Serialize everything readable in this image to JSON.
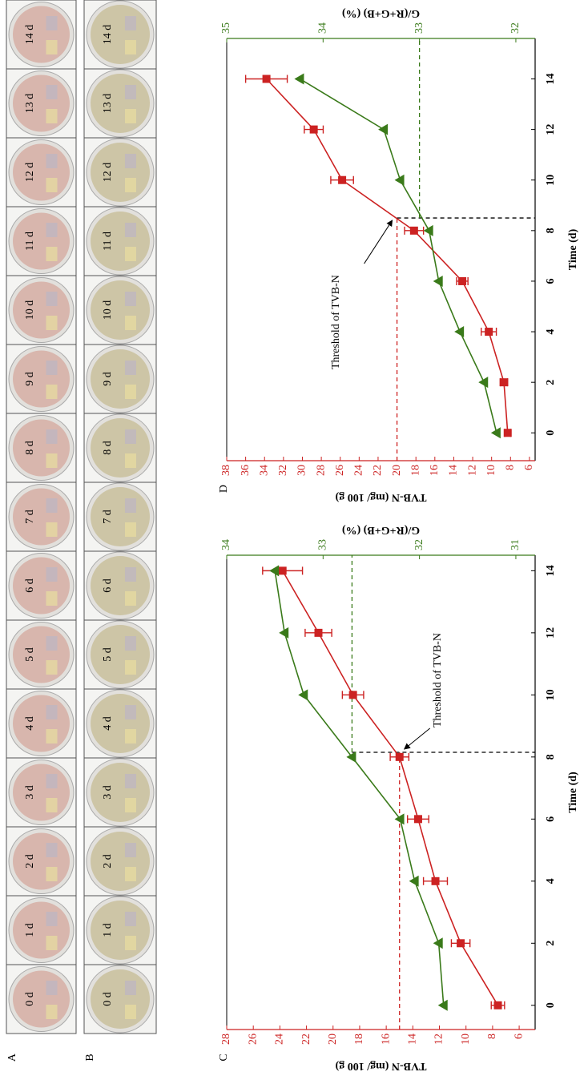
{
  "photos": [
    {
      "label": "A",
      "plates": [
        "0 d",
        "1 d",
        "2 d",
        "3 d",
        "4 d",
        "5 d",
        "6 d",
        "7 d",
        "8 d",
        "9 d",
        "10 d",
        "11 d",
        "12 d",
        "13 d",
        "14 d"
      ],
      "color": "#d8b6ad"
    },
    {
      "label": "B",
      "plates": [
        "0 d",
        "1 d",
        "2 d",
        "3 d",
        "4 d",
        "5 d",
        "6 d",
        "7 d",
        "8 d",
        "9 d",
        "10 d",
        "11 d",
        "12 d",
        "13 d",
        "14 d"
      ],
      "color": "#cdc5a6"
    }
  ],
  "chart_data": [
    {
      "type": "line",
      "label": "C",
      "x_label": "Time (d)",
      "y_label": "TVB-N (mg/ 100 g)",
      "y2_label": "G/(R+G+B) (%)",
      "annotation": "Threshold of TVB-N",
      "x": [
        0,
        2,
        4,
        6,
        8,
        10,
        12,
        14
      ],
      "xlim": [
        -0.78,
        14.5
      ],
      "xticks": [
        0,
        2,
        4,
        6,
        8,
        10,
        12,
        14
      ],
      "ylim": [
        4.8,
        28
      ],
      "yticks": [
        6,
        8,
        10,
        12,
        14,
        16,
        18,
        20,
        22,
        24,
        26,
        28
      ],
      "y2lim": [
        30.8,
        34
      ],
      "y2ticks": [
        31,
        32,
        33,
        34
      ],
      "threshold": {
        "x": 8.15,
        "y": 15,
        "y2": 32.7
      },
      "series": [
        {
          "color": "#cc2222",
          "marker": "square",
          "values": [
            7.6,
            10.4,
            12.3,
            13.6,
            15.0,
            18.5,
            21.1,
            23.8
          ],
          "errors": [
            0.5,
            0.7,
            0.9,
            0.8,
            0.7,
            0.8,
            1.0,
            1.5
          ]
        },
        {
          "color": "#3a7a1a",
          "marker": "triangle",
          "axis": "y2",
          "values": [
            31.75,
            31.8,
            32.05,
            32.2,
            32.7,
            33.2,
            33.4,
            33.5
          ]
        }
      ]
    },
    {
      "type": "line",
      "label": "D",
      "x_label": "Time (d)",
      "y_label": "TVB-N (mg/ 100 g)",
      "y2_label": "G/(R+G+B) (%)",
      "annotation": "Threshold of TVB-N",
      "x": [
        0,
        2,
        4,
        6,
        8,
        10,
        12,
        14
      ],
      "xlim": [
        -1.1,
        15.6
      ],
      "xticks": [
        0,
        2,
        4,
        6,
        8,
        10,
        12,
        14
      ],
      "ylim": [
        5.4,
        38
      ],
      "yticks": [
        6,
        8,
        10,
        12,
        14,
        16,
        18,
        20,
        22,
        24,
        26,
        28,
        30,
        32,
        34,
        36,
        38
      ],
      "y2lim": [
        31.8,
        35
      ],
      "y2ticks": [
        32,
        33,
        34,
        35
      ],
      "threshold": {
        "x": 8.5,
        "y": 20,
        "y2": 33.0
      },
      "series": [
        {
          "color": "#cc2222",
          "marker": "square",
          "values": [
            8.3,
            8.7,
            10.3,
            13.1,
            18.2,
            25.8,
            28.8,
            33.8
          ],
          "errors": [
            0.3,
            0.4,
            0.8,
            0.6,
            1.0,
            1.2,
            1.0,
            2.2
          ]
        },
        {
          "color": "#3a7a1a",
          "marker": "triangle",
          "axis": "y2",
          "values": [
            32.2,
            32.33,
            32.58,
            32.8,
            32.9,
            33.2,
            33.37,
            34.24
          ]
        }
      ]
    }
  ]
}
